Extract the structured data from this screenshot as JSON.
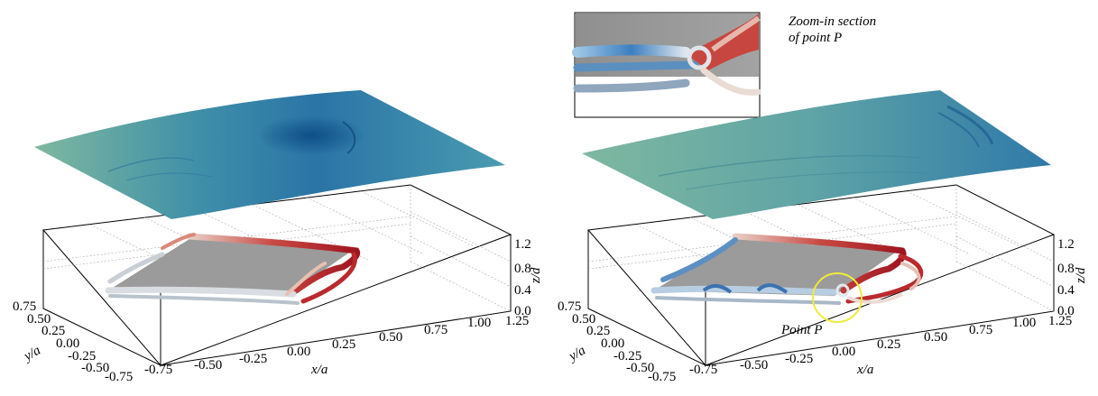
{
  "panels": [
    {
      "id": "left",
      "axes": {
        "x_label": "x/a",
        "y_label": "y/a",
        "z_label": "z/d",
        "x_ticks": [
          "-0.75",
          "-0.50",
          "-0.25",
          "0.00",
          "0.25",
          "0.50",
          "0.75",
          "1.00",
          "1.25"
        ],
        "y_ticks": [
          "0.75",
          "0.50",
          "0.25",
          "0.00",
          "-0.25",
          "-0.50",
          "-0.75"
        ],
        "z_ticks": [
          "0.0",
          "0.4",
          "0.8",
          "1.2"
        ]
      }
    },
    {
      "id": "right",
      "axes": {
        "x_label": "x/a",
        "y_label": "y/a",
        "z_label": "z/d",
        "x_ticks": [
          "-0.75",
          "-0.50",
          "-0.25",
          "0.00",
          "0.25",
          "0.50",
          "0.75",
          "1.00",
          "1.25"
        ],
        "y_ticks": [
          "0.75",
          "0.50",
          "0.25",
          "0.00",
          "-0.25",
          "-0.50",
          "-0.75"
        ],
        "z_ticks": [
          "0.0",
          "0.4",
          "0.8",
          "1.2"
        ]
      },
      "inset_caption_line1": "Zoom-in section",
      "inset_caption_line2": "of point P",
      "point_label": "Point P",
      "highlight_color": "#f2ea3a"
    }
  ],
  "colors": {
    "surface_light": "#7fb89f",
    "surface_dark": "#0e4f86",
    "plate": "#9b9b9b",
    "vortex_red": "#b3212b",
    "vortex_blue": "#2f6fb0"
  }
}
